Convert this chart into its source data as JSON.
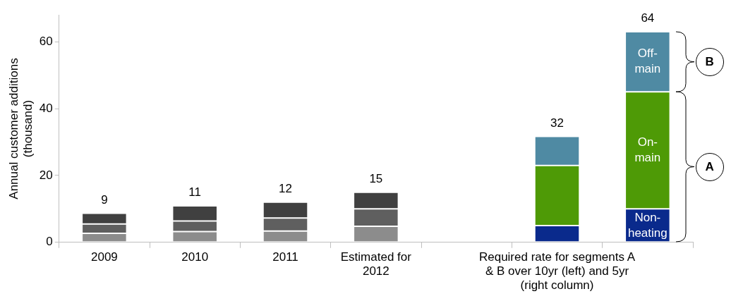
{
  "chart_data": {
    "type": "bar",
    "stacked": true,
    "ylabel": "Annual customer additions (thousand)",
    "categories": [
      "2009",
      "2010",
      "2011",
      "Estimated for 2012",
      null,
      "Required rate for segments A & B over 10yr (left) and 5yr (right column)",
      null
    ],
    "series": [
      {
        "color": "#8c8c8c",
        "values": [
          2.7,
          3.2,
          3.4,
          4.8,
          null,
          null,
          null
        ]
      },
      {
        "color": "#5f5f5f",
        "values": [
          2.8,
          3.2,
          3.9,
          5.2,
          null,
          null,
          null
        ]
      },
      {
        "color": "#404040",
        "values": [
          3.2,
          4.5,
          4.7,
          5.0,
          null,
          null,
          null
        ]
      },
      {
        "name": "Non-heating",
        "color": "#0a2a8c",
        "values": [
          null,
          null,
          null,
          null,
          null,
          5,
          10
        ]
      },
      {
        "name": "On-main",
        "color": "#4e9a06",
        "values": [
          null,
          null,
          null,
          null,
          null,
          18,
          35
        ]
      },
      {
        "name": "Off-main",
        "color": "#4f8aa3",
        "values": [
          null,
          null,
          null,
          null,
          null,
          8.7,
          18
        ]
      }
    ],
    "totals": [
      "9",
      "11",
      "12",
      "15",
      null,
      "32",
      "64"
    ],
    "ylim": [
      0,
      68
    ],
    "yticks": [
      0,
      20,
      40,
      60
    ],
    "grid": false,
    "legend": false,
    "annotations": [
      "B",
      "A"
    ]
  }
}
